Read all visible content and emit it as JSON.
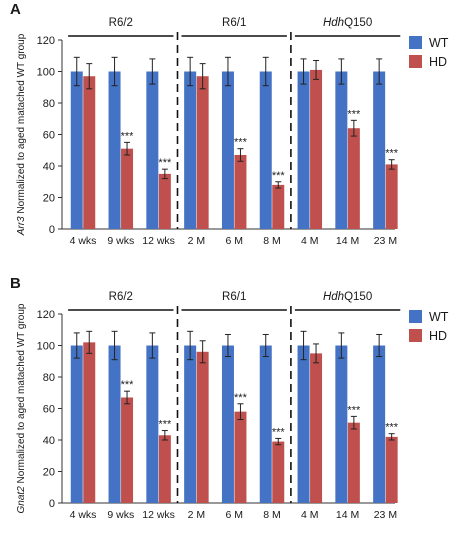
{
  "chart_data": [
    {
      "panel_label": "A",
      "type": "bar",
      "ylabel_gene": "Arr3",
      "ylabel_rest": " Normalized to aged matached WT group",
      "ylim": [
        0,
        120
      ],
      "yticks": [
        0,
        20,
        40,
        60,
        80,
        100,
        120
      ],
      "grid": false,
      "legend_position": "top-right",
      "groups": [
        {
          "label": "R6/2",
          "label_italic": "",
          "categories": [
            "4 wks",
            "9 wks",
            "12 wks"
          ]
        },
        {
          "label": "R6/1",
          "label_italic": "",
          "categories": [
            "2 M",
            "6 M",
            "8 M"
          ]
        },
        {
          "label": "Q150",
          "label_italic": "Hdh",
          "categories": [
            "4 M",
            "14 M",
            "23 M"
          ]
        }
      ],
      "categories": [
        "4 wks",
        "9 wks",
        "12 wks",
        "2 M",
        "6 M",
        "8 M",
        "4 M",
        "14 M",
        "23 M"
      ],
      "series": [
        {
          "name": "WT",
          "color": "#4472c4",
          "values": [
            100,
            100,
            100,
            100,
            100,
            100,
            100,
            100,
            100
          ],
          "errors": [
            9,
            9,
            8,
            9,
            9,
            9,
            8,
            8,
            8
          ]
        },
        {
          "name": "HD",
          "color": "#c0504d",
          "values": [
            97,
            51,
            35,
            97,
            47,
            28,
            101,
            64,
            41
          ],
          "errors": [
            8,
            4,
            3,
            8,
            4,
            2,
            6,
            5,
            3
          ]
        }
      ],
      "annotations": [
        "",
        "***",
        "***",
        "",
        "***",
        "***",
        "",
        "***",
        "***"
      ]
    },
    {
      "panel_label": "B",
      "type": "bar",
      "ylabel_gene": "Gnat2",
      "ylabel_rest": " Normalized to aged matached WT group",
      "ylim": [
        0,
        120
      ],
      "yticks": [
        0,
        20,
        40,
        60,
        80,
        100,
        120
      ],
      "grid": false,
      "legend_position": "top-right",
      "groups": [
        {
          "label": "R6/2",
          "label_italic": "",
          "categories": [
            "4 wks",
            "9 wks",
            "12 wks"
          ]
        },
        {
          "label": "R6/1",
          "label_italic": "",
          "categories": [
            "2 M",
            "6 M",
            "8 M"
          ]
        },
        {
          "label": "Q150",
          "label_italic": "Hdh",
          "categories": [
            "4 M",
            "14 M",
            "23 M"
          ]
        }
      ],
      "categories": [
        "4 wks",
        "9 wks",
        "12 wks",
        "2 M",
        "6 M",
        "8 M",
        "4 M",
        "14 M",
        "23 M"
      ],
      "series": [
        {
          "name": "WT",
          "color": "#4472c4",
          "values": [
            100,
            100,
            100,
            100,
            100,
            100,
            100,
            100,
            100
          ],
          "errors": [
            8,
            9,
            8,
            9,
            7,
            7,
            9,
            8,
            7
          ]
        },
        {
          "name": "HD",
          "color": "#c0504d",
          "values": [
            102,
            67,
            43,
            96,
            58,
            39,
            95,
            51,
            42
          ],
          "errors": [
            7,
            4,
            3,
            7,
            5,
            2,
            6,
            4,
            2
          ]
        }
      ],
      "annotations": [
        "",
        "***",
        "***",
        "",
        "***",
        "***",
        "",
        "***",
        "***"
      ]
    }
  ]
}
